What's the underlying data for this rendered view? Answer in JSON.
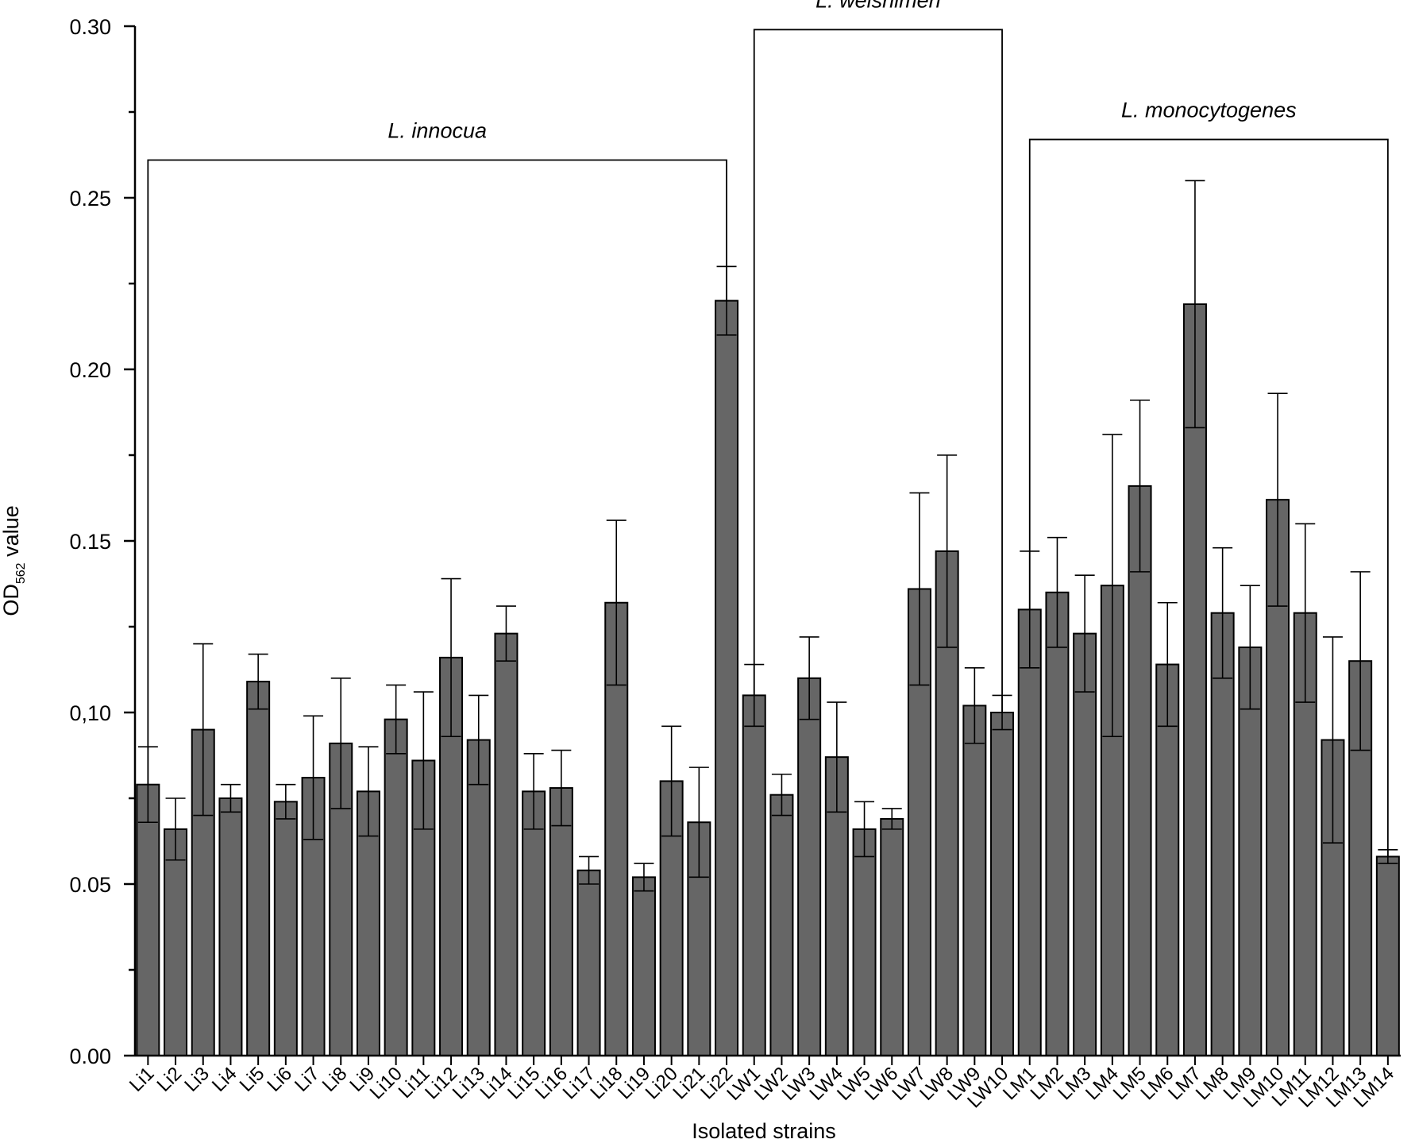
{
  "chart_data": {
    "type": "bar",
    "title": "",
    "xlabel": "Isolated strains",
    "ylabel": {
      "main": "OD",
      "subscript": "562",
      "suffix": " value"
    },
    "ylim": [
      0,
      0.3
    ],
    "yticks": [
      {
        "value": 0.0,
        "label": "0.00"
      },
      {
        "value": 0.05,
        "label": "0.05"
      },
      {
        "value": 0.1,
        "label": "0,10"
      },
      {
        "value": 0.15,
        "label": "0.15"
      },
      {
        "value": 0.2,
        "label": "0.20"
      },
      {
        "value": 0.25,
        "label": "0.25"
      },
      {
        "value": 0.3,
        "label": "0.30"
      }
    ],
    "bar_color": "#666666",
    "categories": [
      "Li1",
      "Li2",
      "Li3",
      "Li4",
      "Li5",
      "Li6",
      "Li7",
      "Li8",
      "Li9",
      "Li10",
      "Li11",
      "Li12",
      "Li13",
      "Li14",
      "Li15",
      "Li16",
      "Li17",
      "Li18",
      "Li19",
      "Li20",
      "Li21",
      "Li22",
      "LW1",
      "LW2",
      "LW3",
      "LW4",
      "LW5",
      "LW6",
      "LW7",
      "LW8",
      "LW9",
      "LW10",
      "LM1",
      "LM2",
      "LM3",
      "LM4",
      "LM5",
      "LM6",
      "LM7",
      "LM8",
      "LM9",
      "LM10",
      "LM11",
      "LM12",
      "LM13",
      "LM14"
    ],
    "values": [
      0.079,
      0.066,
      0.095,
      0.075,
      0.109,
      0.074,
      0.081,
      0.091,
      0.077,
      0.098,
      0.086,
      0.116,
      0.092,
      0.123,
      0.077,
      0.078,
      0.054,
      0.132,
      0.052,
      0.08,
      0.068,
      0.22,
      0.105,
      0.076,
      0.11,
      0.087,
      0.066,
      0.069,
      0.136,
      0.147,
      0.102,
      0.1,
      0.13,
      0.135,
      0.123,
      0.137,
      0.166,
      0.114,
      0.219,
      0.129,
      0.119,
      0.162,
      0.129,
      0.092,
      0.115,
      0.058
    ],
    "errors": [
      0.011,
      0.009,
      0.025,
      0.004,
      0.008,
      0.005,
      0.018,
      0.019,
      0.013,
      0.01,
      0.02,
      0.023,
      0.013,
      0.008,
      0.011,
      0.011,
      0.004,
      0.024,
      0.004,
      0.016,
      0.016,
      0.01,
      0.009,
      0.006,
      0.012,
      0.016,
      0.008,
      0.003,
      0.028,
      0.028,
      0.011,
      0.005,
      0.017,
      0.016,
      0.017,
      0.044,
      0.025,
      0.018,
      0.036,
      0.019,
      0.018,
      0.031,
      0.026,
      0.03,
      0.026,
      0.002
    ],
    "groups": [
      {
        "label": "L. innocua",
        "first": 0,
        "last": 21,
        "bracket_y": 0.261
      },
      {
        "label": "L. welshimeri",
        "first": 22,
        "last": 31,
        "bracket_y": 0.299
      },
      {
        "label": "L. monocytogenes",
        "first": 32,
        "last": 45,
        "bracket_y": 0.267
      }
    ]
  }
}
